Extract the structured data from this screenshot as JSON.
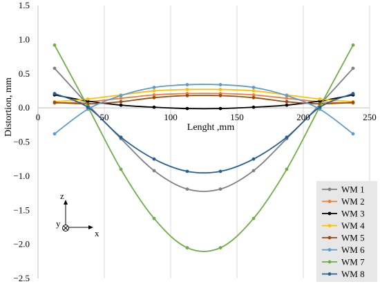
{
  "chart_data": {
    "type": "line",
    "title": "",
    "xlabel": "Lenght ,mm",
    "ylabel": "Distortion, mm",
    "xlim": [
      0,
      250
    ],
    "ylim": [
      -2.5,
      1.5
    ],
    "x_ticks": [
      0,
      50,
      100,
      150,
      200,
      250
    ],
    "y_ticks": [
      1.5,
      1.0,
      0.5,
      0.0,
      -0.5,
      -1.0,
      -1.5,
      -2.0,
      -2.5
    ],
    "x_tick_labels": [
      "0",
      "50",
      "100",
      "150",
      "200",
      "250"
    ],
    "y_tick_labels": [
      "1.5",
      "1.0",
      "0.5",
      "0.0",
      "−0.5",
      "−1.0",
      "−1.5",
      "−2.0",
      "−2.5"
    ],
    "grid": "vertical",
    "legend_position": "bottom-right",
    "x": [
      12.5,
      37.5,
      62.5,
      87.5,
      112.5,
      137.5,
      162.5,
      187.5,
      212.5,
      237.5
    ],
    "series": [
      {
        "name": "WM 1",
        "color": "#808080",
        "values": [
          0.58,
          0.05,
          -0.45,
          -0.92,
          -1.19,
          -1.19,
          -0.92,
          -0.45,
          0.05,
          0.58
        ]
      },
      {
        "name": "WM 2",
        "color": "#ED7D31",
        "values": [
          0.07,
          0.09,
          0.14,
          0.19,
          0.21,
          0.21,
          0.19,
          0.14,
          0.09,
          0.07
        ]
      },
      {
        "name": "WM 3",
        "color": "#000000",
        "values": [
          0.19,
          0.1,
          0.04,
          0.01,
          -0.01,
          -0.01,
          0.01,
          0.04,
          0.1,
          0.19
        ]
      },
      {
        "name": "WM 4",
        "color": "#FFC000",
        "values": [
          0.09,
          0.13,
          0.19,
          0.25,
          0.27,
          0.27,
          0.25,
          0.19,
          0.13,
          0.09
        ]
      },
      {
        "name": "WM 5",
        "color": "#9E480E",
        "values": [
          0.08,
          0.06,
          0.09,
          0.15,
          0.18,
          0.18,
          0.15,
          0.09,
          0.06,
          0.08
        ]
      },
      {
        "name": "WM 6",
        "color": "#5B9BD5",
        "values": [
          -0.38,
          -0.02,
          0.18,
          0.3,
          0.34,
          0.34,
          0.3,
          0.18,
          -0.02,
          -0.38
        ]
      },
      {
        "name": "WM 7",
        "color": "#70AD47",
        "values": [
          0.92,
          0.02,
          -0.9,
          -1.62,
          -2.05,
          -2.05,
          -1.62,
          -0.9,
          0.02,
          0.92
        ]
      },
      {
        "name": "WM 8",
        "color": "#255E91",
        "values": [
          0.21,
          0.01,
          -0.43,
          -0.75,
          -0.93,
          -0.93,
          -0.75,
          -0.43,
          0.01,
          0.21
        ]
      }
    ]
  },
  "inset": {
    "z_label": "z",
    "y_label": "y",
    "x_label": "x"
  }
}
